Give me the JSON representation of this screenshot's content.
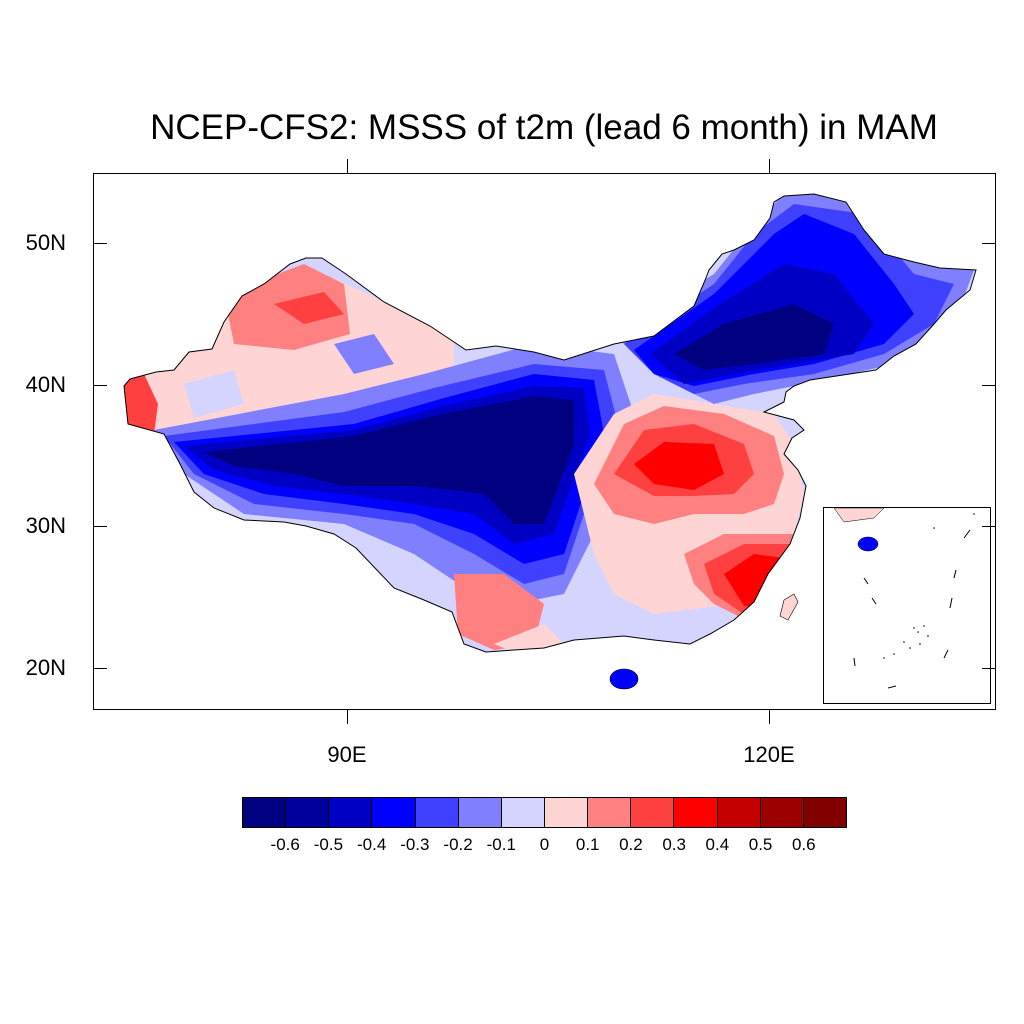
{
  "title": "NCEP-CFS2: MSSS of t2m (lead 6 month) in MAM",
  "axes": {
    "y_labels": [
      "50N",
      "40N",
      "30N",
      "20N"
    ],
    "x_labels": [
      "90E",
      "120E"
    ]
  },
  "colorbar": {
    "colors": [
      "#000080",
      "#00009c",
      "#0000c4",
      "#0000ff",
      "#4040ff",
      "#8080ff",
      "#d4d4ff",
      "#ffd4d4",
      "#ff8080",
      "#ff4040",
      "#ff0000",
      "#c40000",
      "#9c0000",
      "#800000"
    ],
    "labels": [
      "-0.6",
      "-0.5",
      "-0.4",
      "-0.3",
      "-0.2",
      "-0.1",
      "0",
      "0.1",
      "0.2",
      "0.3",
      "0.4",
      "0.5",
      "0.6"
    ]
  },
  "regions": {
    "deep_blue": "#000080",
    "blue": "#0000c4",
    "mid_blue": "#4040ff",
    "light_blue": "#8080ff",
    "pale_blue": "#d4d4ff",
    "pale_red": "#ffd4d4",
    "light_red": "#ff8080",
    "red": "#ff4040",
    "strong_red": "#ff0000",
    "dark_red": "#c40000"
  }
}
